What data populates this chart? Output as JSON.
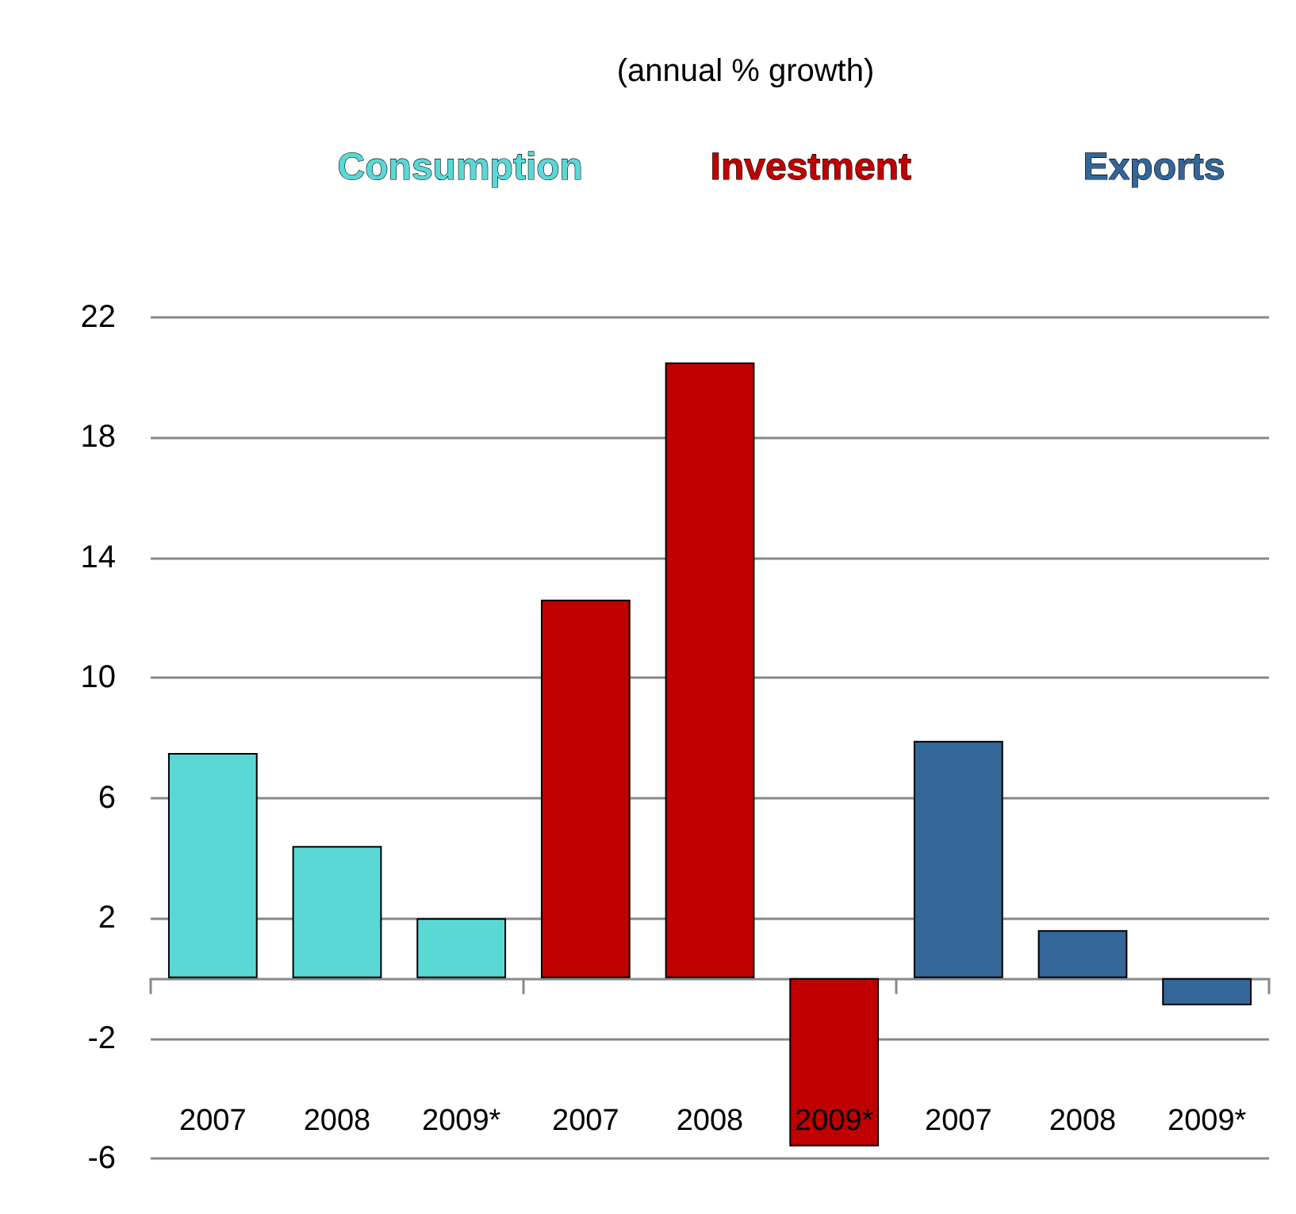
{
  "chart_data": {
    "type": "bar",
    "title": "(annual % growth)",
    "categories": [
      "2007",
      "2008",
      "2009*",
      "2007",
      "2008",
      "2009*",
      "2007",
      "2008",
      "2009*"
    ],
    "series": [
      {
        "name": "Consumption",
        "color": "#5ad8d6",
        "values": [
          7.5,
          4.4,
          2.0,
          null,
          null,
          null,
          null,
          null,
          null
        ]
      },
      {
        "name": "Investment",
        "color": "#c00000",
        "values": [
          null,
          null,
          null,
          12.6,
          20.5,
          -5.6,
          null,
          null,
          null
        ]
      },
      {
        "name": "Exports",
        "color": "#336699",
        "values": [
          null,
          null,
          null,
          null,
          null,
          null,
          7.9,
          1.6,
          -0.9
        ]
      }
    ],
    "ylim": [
      -6,
      22
    ],
    "yticks": [
      -6,
      -2,
      2,
      6,
      10,
      14,
      18,
      22
    ],
    "grid": "y",
    "legend": false
  }
}
